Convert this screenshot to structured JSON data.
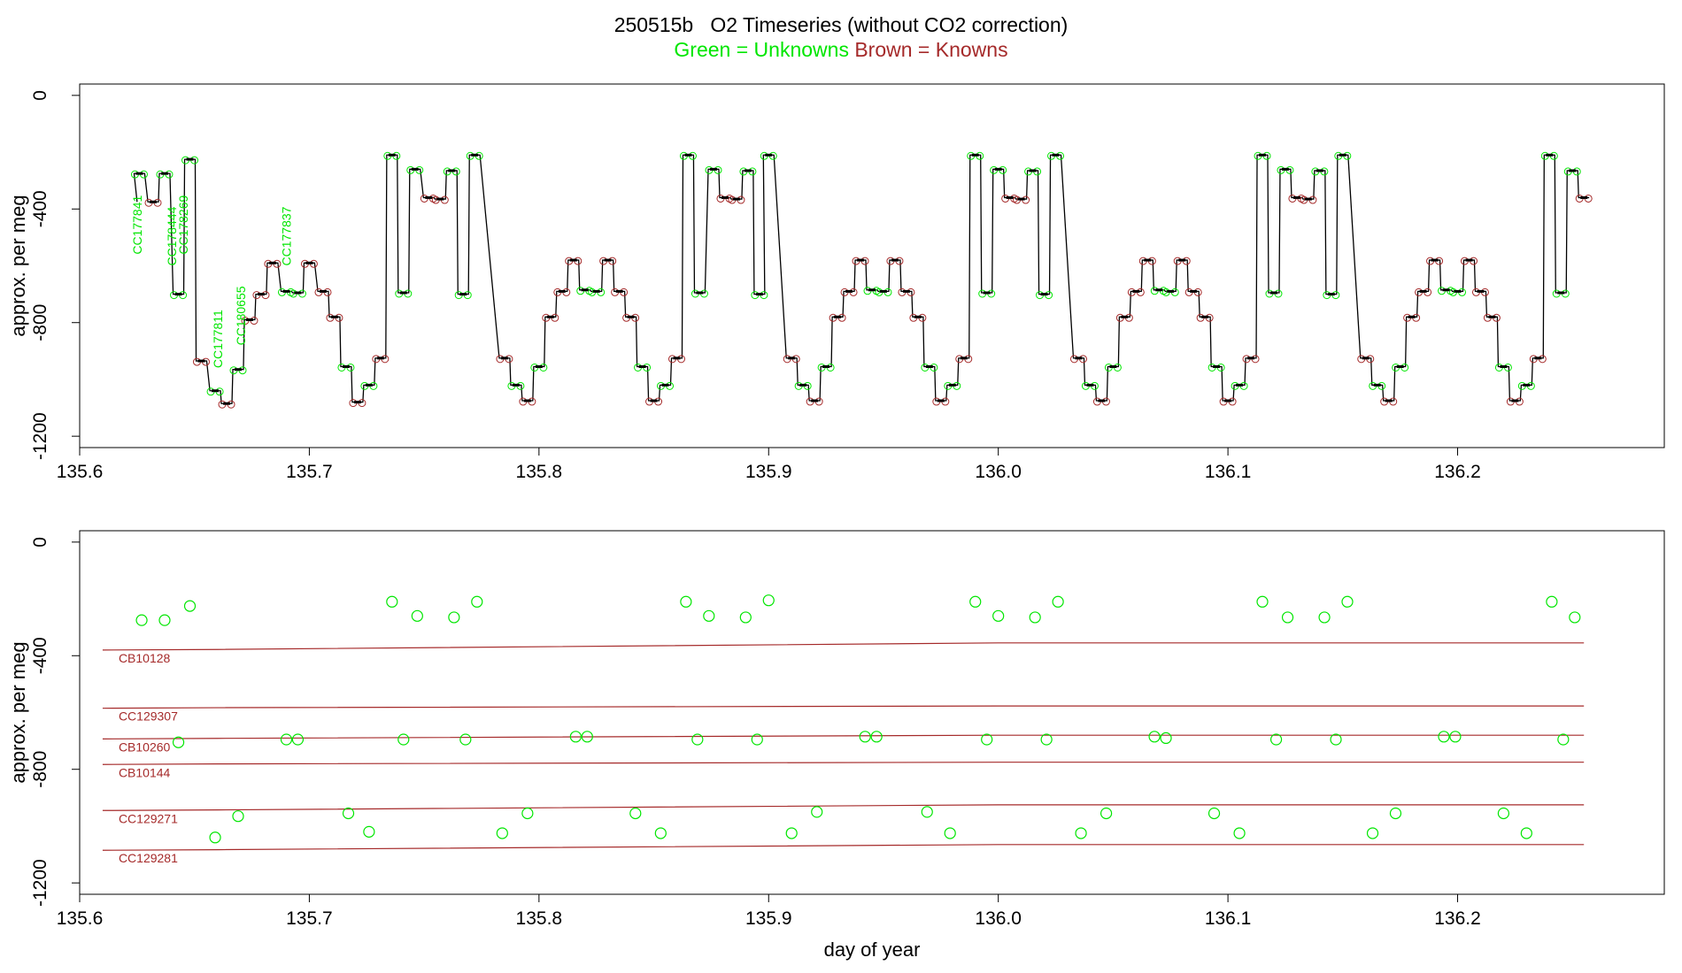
{
  "title": "250515b   O2 Timeseries (without CO2 correction)",
  "subtitle": {
    "unknowns": "Green = Unknowns",
    "knowns": "Brown = Knowns"
  },
  "colors": {
    "unknown": "#00e600",
    "known": "#a52a2a",
    "trace": "#000000"
  },
  "chart_data": [
    {
      "type": "line",
      "panel": "top",
      "ylabel": "approx. per meg",
      "xlabel": "",
      "xlim": [
        135.6,
        136.29
      ],
      "ylim": [
        -1240,
        40
      ],
      "xticks": [
        135.6,
        135.7,
        135.8,
        135.9,
        136.0,
        136.1,
        136.2
      ],
      "xtick_labels": [
        "135.6",
        "135.7",
        "135.8",
        "135.9",
        "136.0",
        "136.1",
        "136.2"
      ],
      "yticks": [
        0,
        -400,
        -800,
        -1200
      ],
      "ytick_labels": [
        "0",
        "-400",
        "-800",
        "-1200"
      ],
      "steps": [
        [
          135.626,
          -275,
          "U"
        ],
        [
          135.632,
          -375,
          "K"
        ],
        [
          135.637,
          -275,
          "U"
        ],
        [
          135.643,
          -700,
          "U"
        ],
        [
          135.648,
          -225,
          "U"
        ],
        [
          135.653,
          -935,
          "K"
        ],
        [
          135.659,
          -1040,
          "U"
        ],
        [
          135.664,
          -1085,
          "K"
        ],
        [
          135.669,
          -965,
          "U"
        ],
        [
          135.674,
          -790,
          "K"
        ],
        [
          135.679,
          -700,
          "K"
        ],
        [
          135.684,
          -590,
          "K"
        ],
        [
          135.69,
          -690,
          "U"
        ],
        [
          135.695,
          -695,
          "U"
        ],
        [
          135.7,
          -590,
          "K"
        ],
        [
          135.706,
          -690,
          "K"
        ],
        [
          135.711,
          -780,
          "K"
        ],
        [
          135.716,
          -955,
          "U"
        ],
        [
          135.721,
          -1080,
          "K"
        ],
        [
          135.726,
          -1020,
          "U"
        ],
        [
          135.731,
          -925,
          "K"
        ],
        [
          135.736,
          -210,
          "U"
        ],
        [
          135.741,
          -695,
          "U"
        ],
        [
          135.746,
          -260,
          "U"
        ],
        [
          135.752,
          -360,
          "K"
        ],
        [
          135.757,
          -365,
          "K"
        ],
        [
          135.762,
          -265,
          "U"
        ],
        [
          135.767,
          -700,
          "U"
        ],
        [
          135.772,
          -210,
          "U"
        ],
        [
          135.785,
          -925,
          "K"
        ],
        [
          135.79,
          -1020,
          "U"
        ],
        [
          135.795,
          -1075,
          "K"
        ],
        [
          135.8,
          -955,
          "U"
        ],
        [
          135.805,
          -780,
          "K"
        ],
        [
          135.81,
          -690,
          "K"
        ],
        [
          135.815,
          -580,
          "K"
        ],
        [
          135.82,
          -685,
          "U"
        ],
        [
          135.825,
          -690,
          "U"
        ],
        [
          135.83,
          -580,
          "K"
        ],
        [
          135.835,
          -690,
          "K"
        ],
        [
          135.84,
          -780,
          "K"
        ],
        [
          135.845,
          -955,
          "U"
        ],
        [
          135.85,
          -1075,
          "K"
        ],
        [
          135.855,
          -1020,
          "U"
        ],
        [
          135.86,
          -925,
          "K"
        ],
        [
          135.865,
          -210,
          "U"
        ],
        [
          135.87,
          -695,
          "U"
        ],
        [
          135.876,
          -260,
          "U"
        ],
        [
          135.881,
          -360,
          "K"
        ],
        [
          135.886,
          -365,
          "K"
        ],
        [
          135.891,
          -265,
          "U"
        ],
        [
          135.896,
          -700,
          "U"
        ],
        [
          135.9,
          -210,
          "U"
        ],
        [
          135.91,
          -925,
          "K"
        ],
        [
          135.915,
          -1020,
          "U"
        ],
        [
          135.92,
          -1075,
          "K"
        ],
        [
          135.925,
          -955,
          "U"
        ],
        [
          135.93,
          -780,
          "K"
        ],
        [
          135.935,
          -690,
          "K"
        ],
        [
          135.94,
          -580,
          "K"
        ],
        [
          135.945,
          -685,
          "U"
        ],
        [
          135.95,
          -690,
          "U"
        ],
        [
          135.955,
          -580,
          "K"
        ],
        [
          135.96,
          -690,
          "K"
        ],
        [
          135.965,
          -780,
          "K"
        ],
        [
          135.97,
          -955,
          "U"
        ],
        [
          135.975,
          -1075,
          "K"
        ],
        [
          135.98,
          -1020,
          "U"
        ],
        [
          135.985,
          -925,
          "K"
        ],
        [
          135.99,
          -210,
          "U"
        ],
        [
          135.995,
          -695,
          "U"
        ],
        [
          136.0,
          -260,
          "U"
        ],
        [
          136.005,
          -360,
          "K"
        ],
        [
          136.01,
          -365,
          "K"
        ],
        [
          136.015,
          -265,
          "U"
        ],
        [
          136.02,
          -700,
          "U"
        ],
        [
          136.025,
          -210,
          "U"
        ],
        [
          136.035,
          -925,
          "K"
        ],
        [
          136.04,
          -1020,
          "U"
        ],
        [
          136.045,
          -1075,
          "K"
        ],
        [
          136.05,
          -955,
          "U"
        ],
        [
          136.055,
          -780,
          "K"
        ],
        [
          136.06,
          -690,
          "K"
        ],
        [
          136.065,
          -580,
          "K"
        ],
        [
          136.07,
          -685,
          "U"
        ],
        [
          136.075,
          -690,
          "U"
        ],
        [
          136.08,
          -580,
          "K"
        ],
        [
          136.085,
          -690,
          "K"
        ],
        [
          136.09,
          -780,
          "K"
        ],
        [
          136.095,
          -955,
          "U"
        ],
        [
          136.1,
          -1075,
          "K"
        ],
        [
          136.105,
          -1020,
          "U"
        ],
        [
          136.11,
          -925,
          "K"
        ],
        [
          136.115,
          -210,
          "U"
        ],
        [
          136.12,
          -695,
          "U"
        ],
        [
          136.125,
          -260,
          "U"
        ],
        [
          136.13,
          -360,
          "K"
        ],
        [
          136.135,
          -365,
          "K"
        ],
        [
          136.14,
          -265,
          "U"
        ],
        [
          136.145,
          -700,
          "U"
        ],
        [
          136.15,
          -210,
          "U"
        ],
        [
          136.16,
          -925,
          "K"
        ],
        [
          136.165,
          -1020,
          "U"
        ],
        [
          136.17,
          -1075,
          "K"
        ],
        [
          136.175,
          -955,
          "U"
        ],
        [
          136.18,
          -780,
          "K"
        ],
        [
          136.185,
          -690,
          "K"
        ],
        [
          136.19,
          -580,
          "K"
        ],
        [
          136.195,
          -685,
          "U"
        ],
        [
          136.2,
          -690,
          "U"
        ],
        [
          136.205,
          -580,
          "K"
        ],
        [
          136.21,
          -690,
          "K"
        ],
        [
          136.215,
          -780,
          "K"
        ],
        [
          136.22,
          -955,
          "U"
        ],
        [
          136.225,
          -1075,
          "K"
        ],
        [
          136.23,
          -1020,
          "U"
        ],
        [
          136.235,
          -925,
          "K"
        ],
        [
          136.24,
          -210,
          "U"
        ],
        [
          136.245,
          -695,
          "U"
        ],
        [
          136.25,
          -265,
          "U"
        ],
        [
          136.255,
          -360,
          "K"
        ]
      ],
      "labels": [
        {
          "text": "CC177841",
          "x": 135.627,
          "y": -560
        },
        {
          "text": "CC178444",
          "x": 135.642,
          "y": -600
        },
        {
          "text": "CC178269",
          "x": 135.647,
          "y": -560
        },
        {
          "text": "CC177811",
          "x": 135.662,
          "y": -960
        },
        {
          "text": "CC180655",
          "x": 135.672,
          "y": -880
        },
        {
          "text": "CC177837",
          "x": 135.692,
          "y": -600
        }
      ]
    },
    {
      "type": "scatter",
      "panel": "bottom",
      "ylabel": "approx. per meg",
      "xlabel": "day of year",
      "xlim": [
        135.6,
        136.29
      ],
      "ylim": [
        -1240,
        40
      ],
      "xticks": [
        135.6,
        135.7,
        135.8,
        135.9,
        136.0,
        136.1,
        136.2
      ],
      "xtick_labels": [
        "135.6",
        "135.7",
        "135.8",
        "135.9",
        "136.0",
        "136.1",
        "136.2"
      ],
      "yticks": [
        0,
        -400,
        -800,
        -1200
      ],
      "ytick_labels": [
        "0",
        "-400",
        "-800",
        "-1200"
      ],
      "knowns": [
        {
          "name": "CB10128",
          "start": -380,
          "end": -355
        },
        {
          "name": "CC129307",
          "start": -585,
          "end": -577
        },
        {
          "name": "CB10260",
          "start": -693,
          "end": -680
        },
        {
          "name": "CB10144",
          "start": -783,
          "end": -775
        },
        {
          "name": "CC129271",
          "start": -945,
          "end": -925
        },
        {
          "name": "CC129281",
          "start": -1085,
          "end": -1065
        }
      ],
      "knowns_xrange": [
        135.61,
        136.255
      ],
      "points": [
        [
          135.627,
          -275
        ],
        [
          135.637,
          -275
        ],
        [
          135.648,
          -225
        ],
        [
          135.643,
          -705
        ],
        [
          135.659,
          -1040
        ],
        [
          135.669,
          -965
        ],
        [
          135.69,
          -695
        ],
        [
          135.695,
          -695
        ],
        [
          135.717,
          -955
        ],
        [
          135.726,
          -1020
        ],
        [
          135.736,
          -210
        ],
        [
          135.741,
          -695
        ],
        [
          135.747,
          -260
        ],
        [
          135.763,
          -265
        ],
        [
          135.768,
          -695
        ],
        [
          135.773,
          -210
        ],
        [
          135.784,
          -1025
        ],
        [
          135.795,
          -955
        ],
        [
          135.816,
          -685
        ],
        [
          135.821,
          -685
        ],
        [
          135.842,
          -955
        ],
        [
          135.853,
          -1025
        ],
        [
          135.864,
          -210
        ],
        [
          135.869,
          -695
        ],
        [
          135.874,
          -260
        ],
        [
          135.89,
          -265
        ],
        [
          135.895,
          -695
        ],
        [
          135.9,
          -205
        ],
        [
          135.91,
          -1025
        ],
        [
          135.921,
          -950
        ],
        [
          135.942,
          -685
        ],
        [
          135.947,
          -685
        ],
        [
          135.969,
          -950
        ],
        [
          135.979,
          -1025
        ],
        [
          135.99,
          -210
        ],
        [
          135.995,
          -695
        ],
        [
          136.0,
          -260
        ],
        [
          136.016,
          -265
        ],
        [
          136.021,
          -695
        ],
        [
          136.026,
          -210
        ],
        [
          136.036,
          -1025
        ],
        [
          136.047,
          -955
        ],
        [
          136.068,
          -685
        ],
        [
          136.073,
          -690
        ],
        [
          136.094,
          -955
        ],
        [
          136.105,
          -1025
        ],
        [
          136.115,
          -210
        ],
        [
          136.121,
          -695
        ],
        [
          136.126,
          -265
        ],
        [
          136.142,
          -265
        ],
        [
          136.147,
          -695
        ],
        [
          136.152,
          -210
        ],
        [
          136.163,
          -1025
        ],
        [
          136.173,
          -955
        ],
        [
          136.194,
          -685
        ],
        [
          136.199,
          -685
        ],
        [
          136.22,
          -955
        ],
        [
          136.23,
          -1025
        ],
        [
          136.241,
          -210
        ],
        [
          136.246,
          -695
        ],
        [
          136.251,
          -265
        ]
      ]
    }
  ]
}
